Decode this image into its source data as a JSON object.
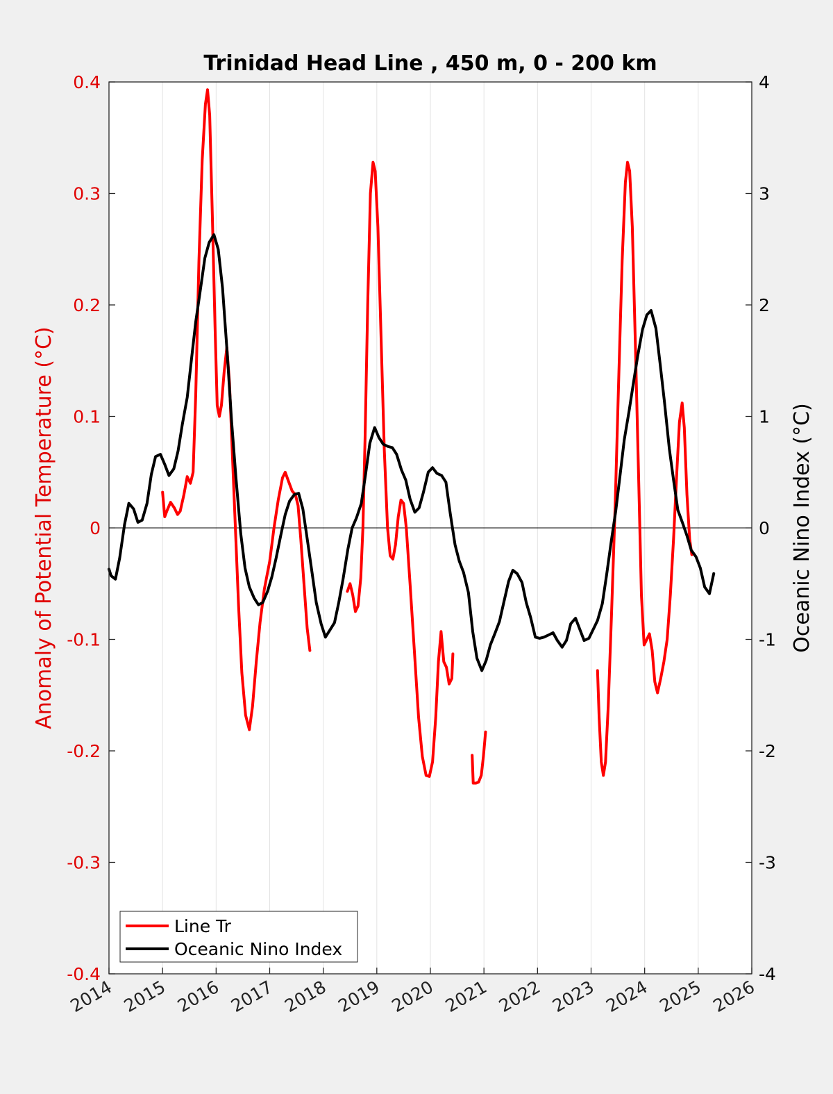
{
  "chart_data": {
    "type": "line",
    "title": "Trinidad Head Line , 450 m, 0 - 200 km",
    "ylabel_left": "Anomaly of Potential Temperature (°C)",
    "ylabel_right": "Oceanic Nino Index (°C)",
    "xlim": [
      2014,
      2026
    ],
    "ylim_left": [
      -0.4,
      0.4
    ],
    "ylim_right": [
      -4,
      4
    ],
    "x_ticks": [
      "2014",
      "2015",
      "2016",
      "2017",
      "2018",
      "2019",
      "2020",
      "2021",
      "2022",
      "2023",
      "2024",
      "2025",
      "2026"
    ],
    "y_ticks_left": [
      "0.4",
      "0.3",
      "0.2",
      "0.1",
      "0",
      "-0.1",
      "-0.2",
      "-0.3",
      "-0.4"
    ],
    "y_ticks_right": [
      "4",
      "3",
      "2",
      "1",
      "0",
      "-1",
      "-2",
      "-3",
      "-4"
    ],
    "grid": "vertical",
    "legend_position": "bottom-left",
    "colors": {
      "line_tr": "#ff0000",
      "oni": "#000000",
      "left_axis": "#e00000"
    },
    "series": [
      {
        "name": "Line Tr",
        "axis": "left",
        "color": "#ff0000",
        "segments": [
          [
            [
              2015.0,
              0.032
            ],
            [
              2015.04,
              0.01
            ],
            [
              2015.08,
              0.015
            ],
            [
              2015.15,
              0.023
            ],
            [
              2015.22,
              0.018
            ],
            [
              2015.28,
              0.012
            ],
            [
              2015.33,
              0.015
            ],
            [
              2015.4,
              0.03
            ],
            [
              2015.46,
              0.046
            ],
            [
              2015.52,
              0.04
            ],
            [
              2015.57,
              0.05
            ],
            [
              2015.62,
              0.12
            ],
            [
              2015.68,
              0.24
            ],
            [
              2015.74,
              0.33
            ],
            [
              2015.8,
              0.38
            ],
            [
              2015.84,
              0.393
            ],
            [
              2015.88,
              0.37
            ],
            [
              2015.93,
              0.28
            ],
            [
              2015.98,
              0.18
            ],
            [
              2016.02,
              0.11
            ],
            [
              2016.06,
              0.1
            ],
            [
              2016.1,
              0.11
            ],
            [
              2016.15,
              0.14
            ],
            [
              2016.2,
              0.162
            ],
            [
              2016.25,
              0.13
            ],
            [
              2016.3,
              0.07
            ],
            [
              2016.36,
              0.0
            ],
            [
              2016.42,
              -0.07
            ],
            [
              2016.48,
              -0.13
            ],
            [
              2016.55,
              -0.168
            ],
            [
              2016.62,
              -0.181
            ],
            [
              2016.68,
              -0.16
            ],
            [
              2016.75,
              -0.12
            ],
            [
              2016.82,
              -0.085
            ],
            [
              2016.9,
              -0.055
            ],
            [
              2017.0,
              -0.03
            ],
            [
              2017.08,
              0.0
            ],
            [
              2017.16,
              0.025
            ],
            [
              2017.24,
              0.045
            ],
            [
              2017.29,
              0.05
            ],
            [
              2017.35,
              0.042
            ],
            [
              2017.42,
              0.033
            ],
            [
              2017.48,
              0.03
            ],
            [
              2017.53,
              0.02
            ],
            [
              2017.58,
              -0.01
            ],
            [
              2017.64,
              -0.05
            ],
            [
              2017.7,
              -0.09
            ],
            [
              2017.75,
              -0.11
            ]
          ],
          [
            [
              2018.45,
              -0.057
            ],
            [
              2018.5,
              -0.05
            ],
            [
              2018.55,
              -0.06
            ],
            [
              2018.6,
              -0.075
            ],
            [
              2018.65,
              -0.07
            ],
            [
              2018.7,
              -0.045
            ],
            [
              2018.74,
              -0.0
            ],
            [
              2018.78,
              0.08
            ],
            [
              2018.83,
              0.2
            ],
            [
              2018.88,
              0.3
            ],
            [
              2018.93,
              0.328
            ],
            [
              2018.97,
              0.32
            ],
            [
              2019.02,
              0.27
            ],
            [
              2019.08,
              0.17
            ],
            [
              2019.14,
              0.07
            ],
            [
              2019.2,
              0.0
            ],
            [
              2019.25,
              -0.025
            ],
            [
              2019.3,
              -0.028
            ],
            [
              2019.35,
              -0.015
            ],
            [
              2019.4,
              0.01
            ],
            [
              2019.45,
              0.025
            ],
            [
              2019.5,
              0.022
            ],
            [
              2019.55,
              0.0
            ],
            [
              2019.62,
              -0.05
            ],
            [
              2019.7,
              -0.11
            ],
            [
              2019.78,
              -0.17
            ],
            [
              2019.85,
              -0.205
            ],
            [
              2019.92,
              -0.222
            ],
            [
              2019.98,
              -0.223
            ],
            [
              2020.04,
              -0.21
            ],
            [
              2020.1,
              -0.17
            ],
            [
              2020.15,
              -0.12
            ],
            [
              2020.2,
              -0.093
            ],
            [
              2020.25,
              -0.12
            ],
            [
              2020.3,
              -0.125
            ],
            [
              2020.35,
              -0.14
            ],
            [
              2020.4,
              -0.135
            ],
            [
              2020.42,
              -0.113
            ]
          ],
          [
            [
              2020.78,
              -0.204
            ],
            [
              2020.8,
              -0.229
            ],
            [
              2020.85,
              -0.229
            ],
            [
              2020.9,
              -0.228
            ],
            [
              2020.95,
              -0.222
            ],
            [
              2020.99,
              -0.205
            ],
            [
              2021.03,
              -0.183
            ]
          ],
          [
            [
              2023.12,
              -0.128
            ],
            [
              2023.15,
              -0.17
            ],
            [
              2023.19,
              -0.21
            ],
            [
              2023.23,
              -0.222
            ],
            [
              2023.27,
              -0.21
            ],
            [
              2023.32,
              -0.16
            ],
            [
              2023.38,
              -0.08
            ],
            [
              2023.45,
              0.02
            ],
            [
              2023.52,
              0.14
            ],
            [
              2023.58,
              0.24
            ],
            [
              2023.64,
              0.31
            ],
            [
              2023.68,
              0.328
            ],
            [
              2023.72,
              0.32
            ],
            [
              2023.77,
              0.27
            ],
            [
              2023.83,
              0.16
            ],
            [
              2023.89,
              0.04
            ],
            [
              2023.94,
              -0.06
            ],
            [
              2023.99,
              -0.105
            ],
            [
              2024.04,
              -0.1
            ],
            [
              2024.09,
              -0.095
            ],
            [
              2024.14,
              -0.11
            ],
            [
              2024.19,
              -0.138
            ],
            [
              2024.24,
              -0.148
            ],
            [
              2024.3,
              -0.135
            ],
            [
              2024.36,
              -0.12
            ],
            [
              2024.42,
              -0.1
            ],
            [
              2024.48,
              -0.06
            ],
            [
              2024.54,
              -0.01
            ],
            [
              2024.6,
              0.05
            ],
            [
              2024.65,
              0.095
            ],
            [
              2024.7,
              0.112
            ],
            [
              2024.74,
              0.09
            ],
            [
              2024.79,
              0.03
            ],
            [
              2024.84,
              -0.01
            ],
            [
              2024.88,
              -0.024
            ]
          ]
        ]
      },
      {
        "name": "Oceanic Nino Index",
        "axis": "right",
        "color": "#000000",
        "points": [
          [
            2014.0,
            -0.37
          ],
          [
            2014.04,
            -0.43
          ],
          [
            2014.12,
            -0.46
          ],
          [
            2014.2,
            -0.27
          ],
          [
            2014.29,
            0.03
          ],
          [
            2014.37,
            0.22
          ],
          [
            2014.46,
            0.17
          ],
          [
            2014.54,
            0.05
          ],
          [
            2014.62,
            0.07
          ],
          [
            2014.71,
            0.22
          ],
          [
            2014.79,
            0.48
          ],
          [
            2014.87,
            0.64
          ],
          [
            2014.96,
            0.66
          ],
          [
            2015.04,
            0.57
          ],
          [
            2015.12,
            0.47
          ],
          [
            2015.21,
            0.53
          ],
          [
            2015.29,
            0.69
          ],
          [
            2015.37,
            0.93
          ],
          [
            2015.46,
            1.17
          ],
          [
            2015.54,
            1.51
          ],
          [
            2015.62,
            1.85
          ],
          [
            2015.71,
            2.15
          ],
          [
            2015.79,
            2.42
          ],
          [
            2015.87,
            2.56
          ],
          [
            2015.96,
            2.63
          ],
          [
            2016.04,
            2.5
          ],
          [
            2016.12,
            2.15
          ],
          [
            2016.21,
            1.55
          ],
          [
            2016.29,
            0.95
          ],
          [
            2016.37,
            0.45
          ],
          [
            2016.46,
            -0.05
          ],
          [
            2016.54,
            -0.36
          ],
          [
            2016.62,
            -0.53
          ],
          [
            2016.71,
            -0.63
          ],
          [
            2016.79,
            -0.69
          ],
          [
            2016.87,
            -0.67
          ],
          [
            2016.96,
            -0.57
          ],
          [
            2017.04,
            -0.44
          ],
          [
            2017.12,
            -0.27
          ],
          [
            2017.21,
            -0.06
          ],
          [
            2017.29,
            0.12
          ],
          [
            2017.37,
            0.24
          ],
          [
            2017.46,
            0.3
          ],
          [
            2017.54,
            0.31
          ],
          [
            2017.62,
            0.17
          ],
          [
            2017.71,
            -0.13
          ],
          [
            2017.79,
            -0.4
          ],
          [
            2017.87,
            -0.67
          ],
          [
            2017.96,
            -0.86
          ],
          [
            2018.04,
            -0.98
          ],
          [
            2018.12,
            -0.92
          ],
          [
            2018.21,
            -0.85
          ],
          [
            2018.29,
            -0.67
          ],
          [
            2018.37,
            -0.46
          ],
          [
            2018.46,
            -0.19
          ],
          [
            2018.54,
            0.0
          ],
          [
            2018.62,
            0.09
          ],
          [
            2018.71,
            0.22
          ],
          [
            2018.79,
            0.48
          ],
          [
            2018.87,
            0.76
          ],
          [
            2018.96,
            0.9
          ],
          [
            2019.04,
            0.81
          ],
          [
            2019.12,
            0.75
          ],
          [
            2019.21,
            0.73
          ],
          [
            2019.29,
            0.72
          ],
          [
            2019.37,
            0.66
          ],
          [
            2019.46,
            0.52
          ],
          [
            2019.54,
            0.43
          ],
          [
            2019.62,
            0.26
          ],
          [
            2019.71,
            0.14
          ],
          [
            2019.79,
            0.18
          ],
          [
            2019.87,
            0.32
          ],
          [
            2019.96,
            0.5
          ],
          [
            2020.04,
            0.54
          ],
          [
            2020.12,
            0.49
          ],
          [
            2020.21,
            0.47
          ],
          [
            2020.29,
            0.41
          ],
          [
            2020.37,
            0.13
          ],
          [
            2020.46,
            -0.15
          ],
          [
            2020.54,
            -0.3
          ],
          [
            2020.62,
            -0.4
          ],
          [
            2020.71,
            -0.58
          ],
          [
            2020.79,
            -0.93
          ],
          [
            2020.87,
            -1.17
          ],
          [
            2020.96,
            -1.28
          ],
          [
            2021.04,
            -1.19
          ],
          [
            2021.12,
            -1.05
          ],
          [
            2021.21,
            -0.94
          ],
          [
            2021.29,
            -0.84
          ],
          [
            2021.37,
            -0.67
          ],
          [
            2021.46,
            -0.48
          ],
          [
            2021.54,
            -0.38
          ],
          [
            2021.62,
            -0.41
          ],
          [
            2021.71,
            -0.49
          ],
          [
            2021.79,
            -0.67
          ],
          [
            2021.87,
            -0.8
          ],
          [
            2021.96,
            -0.98
          ],
          [
            2022.04,
            -0.99
          ],
          [
            2022.12,
            -0.98
          ],
          [
            2022.21,
            -0.96
          ],
          [
            2022.29,
            -0.94
          ],
          [
            2022.37,
            -1.01
          ],
          [
            2022.46,
            -1.07
          ],
          [
            2022.54,
            -1.01
          ],
          [
            2022.62,
            -0.86
          ],
          [
            2022.71,
            -0.81
          ],
          [
            2022.79,
            -0.91
          ],
          [
            2022.87,
            -1.01
          ],
          [
            2022.96,
            -0.99
          ],
          [
            2023.04,
            -0.91
          ],
          [
            2023.12,
            -0.83
          ],
          [
            2023.21,
            -0.68
          ],
          [
            2023.29,
            -0.42
          ],
          [
            2023.37,
            -0.14
          ],
          [
            2023.46,
            0.15
          ],
          [
            2023.54,
            0.47
          ],
          [
            2023.62,
            0.79
          ],
          [
            2023.71,
            1.05
          ],
          [
            2023.79,
            1.3
          ],
          [
            2023.87,
            1.54
          ],
          [
            2023.96,
            1.78
          ],
          [
            2024.04,
            1.91
          ],
          [
            2024.12,
            1.95
          ],
          [
            2024.21,
            1.79
          ],
          [
            2024.29,
            1.47
          ],
          [
            2024.37,
            1.13
          ],
          [
            2024.46,
            0.71
          ],
          [
            2024.54,
            0.43
          ],
          [
            2024.62,
            0.16
          ],
          [
            2024.71,
            0.04
          ],
          [
            2024.79,
            -0.07
          ],
          [
            2024.87,
            -0.2
          ],
          [
            2024.96,
            -0.26
          ],
          [
            2025.04,
            -0.36
          ],
          [
            2025.12,
            -0.53
          ],
          [
            2025.21,
            -0.59
          ],
          [
            2025.29,
            -0.41
          ]
        ]
      }
    ]
  }
}
